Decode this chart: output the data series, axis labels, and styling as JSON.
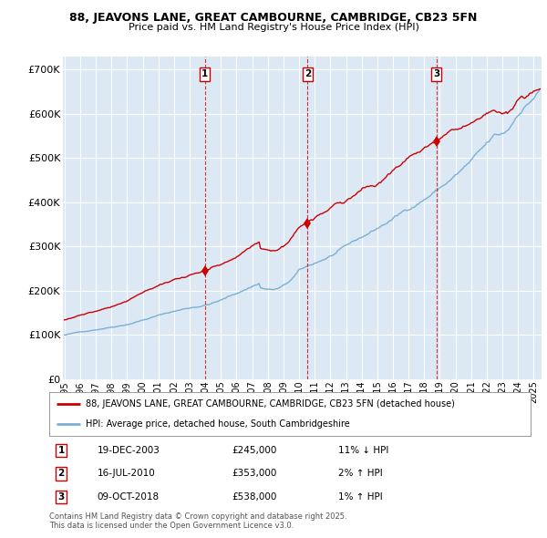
{
  "title_line1": "88, JEAVONS LANE, GREAT CAMBOURNE, CAMBRIDGE, CB23 5FN",
  "title_line2": "Price paid vs. HM Land Registry's House Price Index (HPI)",
  "background_color": "#ffffff",
  "plot_bg_color": "#dce9f5",
  "grid_color": "#ffffff",
  "hpi_color": "#7ab0d4",
  "price_color": "#cc0000",
  "yticks": [
    0,
    100000,
    200000,
    300000,
    400000,
    500000,
    600000,
    700000
  ],
  "ytick_labels": [
    "£0",
    "£100K",
    "£200K",
    "£300K",
    "£400K",
    "£500K",
    "£600K",
    "£700K"
  ],
  "xtick_years": [
    1995,
    1996,
    1997,
    1998,
    1999,
    2000,
    2001,
    2002,
    2003,
    2004,
    2005,
    2006,
    2007,
    2008,
    2009,
    2010,
    2011,
    2012,
    2013,
    2014,
    2015,
    2016,
    2017,
    2018,
    2019,
    2020,
    2021,
    2022,
    2023,
    2024,
    2025
  ],
  "sale_dates": [
    2003.97,
    2010.54,
    2018.78
  ],
  "sale_prices": [
    245000,
    353000,
    538000
  ],
  "sale_labels": [
    "1",
    "2",
    "3"
  ],
  "sale_table": [
    [
      "1",
      "19-DEC-2003",
      "£245,000",
      "11% ↓ HPI"
    ],
    [
      "2",
      "16-JUL-2010",
      "£353,000",
      "2% ↑ HPI"
    ],
    [
      "3",
      "09-OCT-2018",
      "£538,000",
      "1% ↑ HPI"
    ]
  ],
  "legend_line1": "88, JEAVONS LANE, GREAT CAMBOURNE, CAMBRIDGE, CB23 5FN (detached house)",
  "legend_line2": "HPI: Average price, detached house, South Cambridgeshire",
  "footnote": "Contains HM Land Registry data © Crown copyright and database right 2025.\nThis data is licensed under the Open Government Licence v3.0.",
  "xmin": 1994.9,
  "xmax": 2025.5,
  "ymin": 0,
  "ymax": 730000
}
